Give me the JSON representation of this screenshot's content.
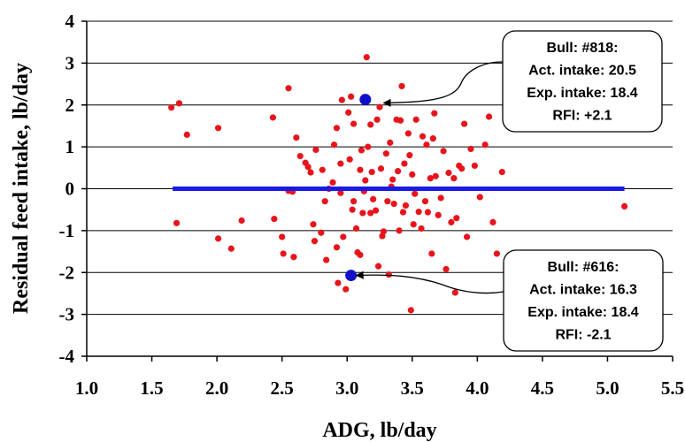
{
  "chart_data": {
    "type": "scatter",
    "xlabel": "ADG, lb/day",
    "ylabel": "Residual feed intake, lb/day",
    "xlim": [
      1.0,
      5.5
    ],
    "ylim": [
      -4,
      4
    ],
    "x_ticks": [
      "1.0",
      "1.5",
      "2.0",
      "2.5",
      "3.0",
      "3.5",
      "4.0",
      "4.5",
      "5.0",
      "5.5"
    ],
    "y_ticks": [
      "4",
      "3",
      "2",
      "1",
      "0",
      "-1",
      "-2",
      "-3",
      "-4"
    ],
    "grid": "horizontal",
    "colors": {
      "points": "#e8141c",
      "highlight": "#1010cc",
      "zero_line": "#1a1ae6"
    },
    "zero_line": {
      "y": 0,
      "x_start": 1.66,
      "x_end": 5.13
    },
    "series": [
      {
        "points": [
          [
            1.65,
            1.94
          ],
          [
            1.71,
            2.04
          ],
          [
            1.77,
            1.29
          ],
          [
            1.69,
            -0.82
          ],
          [
            2.01,
            1.45
          ],
          [
            2.01,
            -1.19
          ],
          [
            2.11,
            -1.43
          ],
          [
            2.19,
            -0.76
          ],
          [
            2.43,
            1.7
          ],
          [
            2.44,
            -0.72
          ],
          [
            2.5,
            -1.15
          ],
          [
            2.51,
            -1.55
          ],
          [
            2.55,
            2.4
          ],
          [
            2.55,
            -0.05
          ],
          [
            2.58,
            -0.07
          ],
          [
            2.59,
            -1.63
          ],
          [
            2.61,
            1.22
          ],
          [
            2.64,
            0.78
          ],
          [
            2.68,
            0.62
          ],
          [
            2.7,
            0.52
          ],
          [
            2.72,
            0.39
          ],
          [
            2.74,
            -0.85
          ],
          [
            2.75,
            -1.25
          ],
          [
            2.76,
            0.93
          ],
          [
            2.8,
            -1.05
          ],
          [
            2.81,
            0.45
          ],
          [
            2.83,
            -0.3
          ],
          [
            2.84,
            -1.7
          ],
          [
            2.86,
            0.0
          ],
          [
            2.89,
            0.15
          ],
          [
            2.9,
            1.05
          ],
          [
            2.92,
            1.45
          ],
          [
            2.92,
            -1.4
          ],
          [
            2.93,
            -2.25
          ],
          [
            2.95,
            0.6
          ],
          [
            2.95,
            -0.1
          ],
          [
            2.96,
            2.12
          ],
          [
            2.97,
            -1.15
          ],
          [
            2.99,
            -2.4
          ],
          [
            3.01,
            1.82
          ],
          [
            3.02,
            0.7
          ],
          [
            3.03,
            2.2
          ],
          [
            3.04,
            -0.5
          ],
          [
            3.05,
            1.55
          ],
          [
            3.05,
            -0.3
          ],
          [
            3.07,
            -0.95
          ],
          [
            3.08,
            -1.52
          ],
          [
            3.1,
            0.45
          ],
          [
            3.1,
            -1.58
          ],
          [
            3.11,
            0.92
          ],
          [
            3.12,
            -0.58
          ],
          [
            3.13,
            -0.06
          ],
          [
            3.14,
            0.2
          ],
          [
            3.15,
            3.14
          ],
          [
            3.16,
            1.0
          ],
          [
            3.18,
            1.53
          ],
          [
            3.18,
            -0.58
          ],
          [
            3.19,
            0.4
          ],
          [
            3.2,
            -0.25
          ],
          [
            3.22,
            -0.52
          ],
          [
            3.23,
            1.65
          ],
          [
            3.24,
            -1.85
          ],
          [
            3.25,
            1.95
          ],
          [
            3.26,
            0.48
          ],
          [
            3.27,
            -1.13
          ],
          [
            3.28,
            -1.02
          ],
          [
            3.3,
            0.84
          ],
          [
            3.31,
            -0.3
          ],
          [
            3.32,
            -2.05
          ],
          [
            3.33,
            1.1
          ],
          [
            3.34,
            0.05
          ],
          [
            3.35,
            0.22
          ],
          [
            3.36,
            -0.36
          ],
          [
            3.38,
            1.65
          ],
          [
            3.39,
            0.42
          ],
          [
            3.4,
            -1.0
          ],
          [
            3.41,
            1.63
          ],
          [
            3.42,
            2.45
          ],
          [
            3.43,
            -0.56
          ],
          [
            3.44,
            0.6
          ],
          [
            3.45,
            -0.4
          ],
          [
            3.47,
            1.32
          ],
          [
            3.48,
            0.8
          ],
          [
            3.49,
            -2.9
          ],
          [
            3.5,
            0.34
          ],
          [
            3.51,
            -0.85
          ],
          [
            3.52,
            -0.12
          ],
          [
            3.53,
            1.65
          ],
          [
            3.55,
            -0.55
          ],
          [
            3.57,
            -0.95
          ],
          [
            3.58,
            1.25
          ],
          [
            3.6,
            -0.3
          ],
          [
            3.61,
            1.05
          ],
          [
            3.62,
            -0.56
          ],
          [
            3.64,
            0.25
          ],
          [
            3.65,
            -1.55
          ],
          [
            3.66,
            1.2
          ],
          [
            3.67,
            1.8
          ],
          [
            3.68,
            0.3
          ],
          [
            3.7,
            -0.63
          ],
          [
            3.72,
            -0.22
          ],
          [
            3.74,
            0.9
          ],
          [
            3.76,
            -1.92
          ],
          [
            3.78,
            0.38
          ],
          [
            3.8,
            -0.8
          ],
          [
            3.82,
            0.25
          ],
          [
            3.83,
            -2.48
          ],
          [
            3.84,
            -0.7
          ],
          [
            3.86,
            0.55
          ],
          [
            3.88,
            0.48
          ],
          [
            3.9,
            1.55
          ],
          [
            3.92,
            -1.15
          ],
          [
            3.95,
            0.95
          ],
          [
            3.98,
            0.55
          ],
          [
            4.02,
            -0.2
          ],
          [
            4.06,
            1.05
          ],
          [
            4.09,
            1.72
          ],
          [
            4.12,
            -0.8
          ],
          [
            4.15,
            -1.55
          ],
          [
            4.19,
            0.4
          ],
          [
            5.13,
            -0.42
          ]
        ]
      },
      {
        "highlight": true,
        "points": [
          [
            3.14,
            2.13
          ],
          [
            3.03,
            -2.07
          ]
        ]
      }
    ],
    "annotations": [
      {
        "name": "bull-818",
        "lines": [
          "Bull: #818:",
          "Act. intake: 20.5",
          "Exp. intake: 18.4",
          "RFI: +2.1"
        ],
        "point": [
          3.14,
          2.13
        ],
        "arrow_tip": [
          3.28,
          2.05
        ]
      },
      {
        "name": "bull-616",
        "lines": [
          "Bull: #616:",
          "Act. intake: 16.3",
          "Exp. intake: 18.4",
          "RFI:  -2.1"
        ],
        "point": [
          3.03,
          -2.07
        ],
        "arrow_tip": [
          3.07,
          -2.07
        ]
      }
    ]
  }
}
